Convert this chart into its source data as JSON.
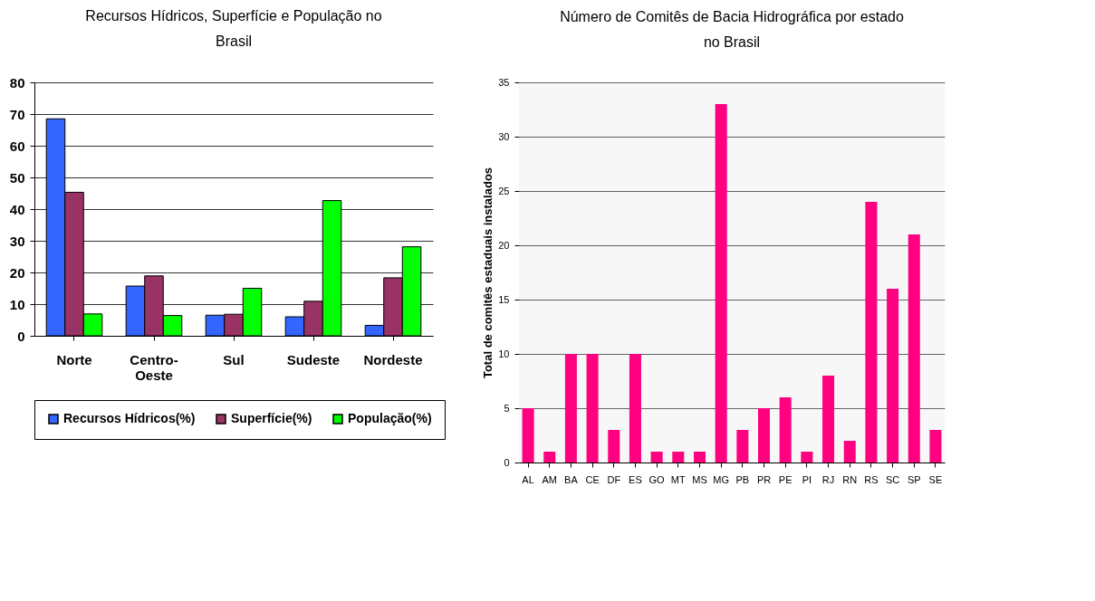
{
  "chart_data": [
    {
      "type": "bar",
      "title": "Recursos Hídricos, Superfície e População no Brasil",
      "categories": [
        "Norte",
        "Centro-Oeste",
        "Sul",
        "Sudeste",
        "Nordeste"
      ],
      "series": [
        {
          "name": "Recursos Hídricos(%)",
          "color": "#3366ff",
          "values": [
            68.5,
            15.7,
            6.5,
            6.0,
            3.3
          ]
        },
        {
          "name": "Superfície(%)",
          "color": "#993366",
          "values": [
            45.3,
            18.9,
            6.8,
            10.9,
            18.3
          ]
        },
        {
          "name": "População(%)",
          "color": "#00ff00",
          "values": [
            6.9,
            6.4,
            15.0,
            42.7,
            28.1
          ]
        }
      ],
      "ylim": [
        0,
        80
      ],
      "yticks": [
        0,
        10,
        20,
        30,
        40,
        50,
        60,
        70,
        80
      ],
      "grid": "y",
      "legend": "bottom"
    },
    {
      "type": "bar",
      "title": "Número de Comitês de Bacia Hidrográfica por estado no Brasil",
      "ylabel": "Total de comitês estaduais instalados",
      "categories": [
        "AL",
        "AM",
        "BA",
        "CE",
        "DF",
        "ES",
        "GO",
        "MT",
        "MS",
        "MG",
        "PB",
        "PR",
        "PE",
        "PI",
        "RJ",
        "RN",
        "RS",
        "SC",
        "SP",
        "SE"
      ],
      "series": [
        {
          "color": "#ff0080",
          "values": [
            5,
            1,
            10,
            10,
            3,
            10,
            1,
            1,
            1,
            33,
            3,
            5,
            6,
            1,
            8,
            2,
            24,
            16,
            21,
            3
          ]
        }
      ],
      "ylim": [
        0,
        35
      ],
      "yticks": [
        0,
        5,
        10,
        15,
        20,
        25,
        30,
        35
      ],
      "grid": "y"
    }
  ]
}
